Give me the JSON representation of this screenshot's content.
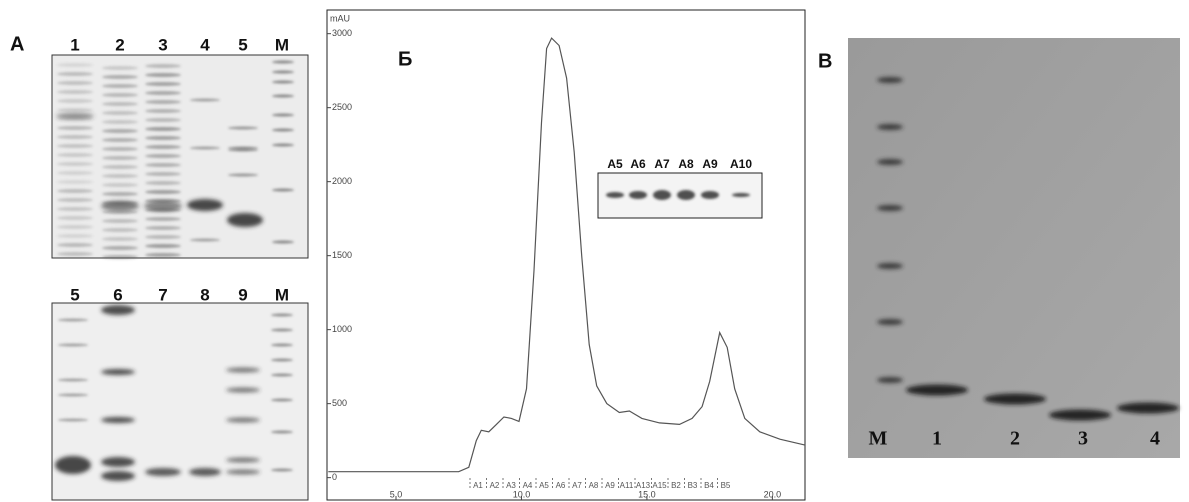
{
  "panel_a": {
    "label": "A",
    "top_lanes": [
      "1",
      "2",
      "3",
      "4",
      "5",
      "M"
    ],
    "bottom_lanes": [
      "5",
      "6",
      "7",
      "8",
      "9",
      "M"
    ]
  },
  "chart_data": {
    "type": "line",
    "title": "Б",
    "y_label": "mAU",
    "x": [
      2.3,
      7.5,
      7.9,
      8.2,
      8.4,
      8.7,
      9.0,
      9.3,
      9.6,
      9.9,
      10.2,
      10.5,
      10.8,
      11.0,
      11.2,
      11.5,
      11.8,
      12.1,
      12.4,
      12.7,
      13.0,
      13.4,
      13.9,
      14.3,
      14.8,
      15.5,
      16.3,
      16.8,
      17.2,
      17.5,
      17.9,
      18.2,
      18.5,
      18.9,
      19.5,
      20.3,
      21.3
    ],
    "values": [
      40,
      40,
      70,
      250,
      320,
      310,
      360,
      410,
      400,
      380,
      600,
      1400,
      2400,
      2900,
      2970,
      2920,
      2700,
      2200,
      1500,
      900,
      620,
      500,
      440,
      450,
      400,
      370,
      360,
      400,
      480,
      650,
      980,
      880,
      600,
      400,
      310,
      260,
      220
    ],
    "color": "#555555",
    "xlim": [
      2.25,
      21.3
    ],
    "ylim": [
      -70,
      3160
    ],
    "xticks": [
      {
        "value": 5,
        "label": "5.0"
      },
      {
        "value": 10,
        "label": "10.0"
      },
      {
        "value": 15,
        "label": "15.0"
      },
      {
        "value": 20,
        "label": "20.0"
      }
    ],
    "yticks": [
      0,
      500,
      1000,
      1500,
      2000,
      2500,
      3000
    ],
    "fractions": [
      "A1",
      "A2",
      "A3",
      "A4",
      "A5",
      "A6",
      "A7",
      "A8",
      "A9",
      "A11",
      "A13",
      "A15",
      "B2",
      "B3",
      "B4",
      "B5"
    ],
    "inset_lanes": [
      "A5",
      "A6",
      "A7",
      "A8",
      "A9",
      "A10"
    ]
  },
  "panel_b": {
    "label": "B",
    "lanes": [
      "M",
      "1",
      "2",
      "3",
      "4"
    ]
  }
}
